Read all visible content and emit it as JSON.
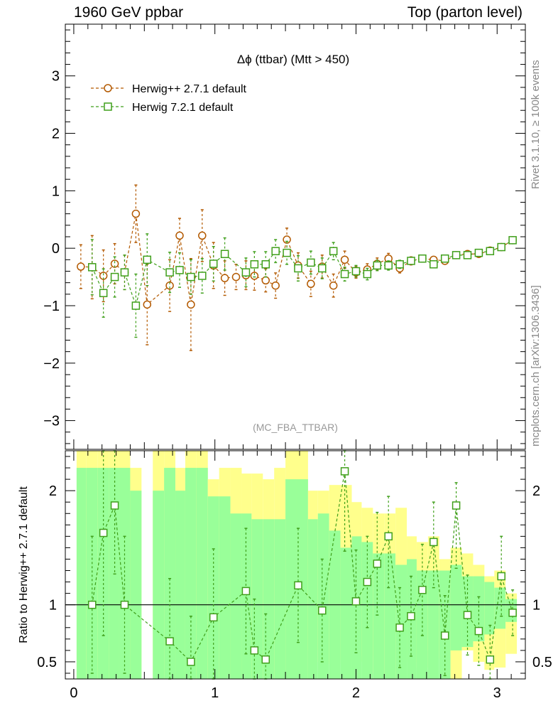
{
  "header": {
    "left": "1960 GeV ppbar",
    "right": "Top (parton level)"
  },
  "side_labels": {
    "top": "Rivet 3.1.10, ≥ 100k events",
    "bottom": "mcplots.cern.ch [arXiv:1306.3436]"
  },
  "colors": {
    "herwigpp": "#b35900",
    "herwig7": "#3f9f1a",
    "band_green": "#99ff99",
    "band_yellow": "#ffff8c"
  },
  "chart_data": [
    {
      "type": "line",
      "title": "Δϕ (ttbar) (Mtt > 450)",
      "watermark": "(MC_FBA_TTBAR)",
      "xlabel": "",
      "ylabel": "",
      "xlim": [
        -0.06,
        3.2
      ],
      "ylim": [
        -3.5,
        3.9
      ],
      "yticks": [
        -3,
        -2,
        -1,
        0,
        1,
        2,
        3
      ],
      "legend_position": "top-left",
      "series": [
        {
          "name": "Herwig++ 2.7.1 default",
          "marker": "circle",
          "x": [
            0.05,
            0.13,
            0.21,
            0.29,
            0.36,
            0.44,
            0.52,
            0.68,
            0.75,
            0.83,
            0.91,
            0.99,
            1.07,
            1.15,
            1.22,
            1.28,
            1.36,
            1.43,
            1.51,
            1.59,
            1.68,
            1.76,
            1.84,
            1.92,
            2.0,
            2.08,
            2.15,
            2.23,
            2.31,
            2.39,
            2.47,
            2.55,
            2.63,
            2.71,
            2.79,
            2.87,
            2.95,
            3.03,
            3.11
          ],
          "y": [
            -0.32,
            -0.33,
            -0.48,
            -0.27,
            -0.42,
            0.6,
            -0.98,
            -0.65,
            0.22,
            -0.98,
            0.22,
            -0.3,
            -0.52,
            -0.5,
            -0.47,
            -0.48,
            -0.56,
            -0.65,
            0.15,
            -0.3,
            -0.62,
            -0.32,
            -0.65,
            -0.2,
            -0.42,
            -0.37,
            -0.27,
            -0.18,
            -0.35,
            -0.22,
            -0.18,
            -0.2,
            -0.22,
            -0.12,
            -0.1,
            -0.1,
            -0.04,
            0.02,
            0.14
          ],
          "err": [
            0.38,
            0.55,
            0.45,
            0.35,
            0.3,
            0.5,
            0.7,
            0.45,
            0.3,
            0.8,
            0.45,
            0.4,
            0.3,
            0.22,
            0.25,
            0.25,
            0.2,
            0.22,
            0.2,
            0.22,
            0.22,
            0.2,
            0.2,
            0.15,
            0.1,
            0.1,
            0.1,
            0.09,
            0.08,
            0.07,
            0.06,
            0.05,
            0.05,
            0.05,
            0.04,
            0.04,
            0.04,
            0.04,
            0.04
          ]
        },
        {
          "name": "Herwig 7.2.1 default",
          "marker": "square",
          "x": [
            0.13,
            0.21,
            0.29,
            0.36,
            0.44,
            0.52,
            0.68,
            0.75,
            0.83,
            0.91,
            0.99,
            1.07,
            1.22,
            1.28,
            1.36,
            1.43,
            1.51,
            1.59,
            1.68,
            1.76,
            1.84,
            1.92,
            2.0,
            2.08,
            2.15,
            2.23,
            2.31,
            2.39,
            2.47,
            2.55,
            2.63,
            2.71,
            2.79,
            2.87,
            2.95,
            3.03,
            3.11
          ],
          "y": [
            -0.33,
            -0.78,
            -0.5,
            -0.42,
            -1.0,
            -0.2,
            -0.42,
            -0.38,
            -0.5,
            -0.48,
            -0.27,
            -0.1,
            -0.42,
            -0.28,
            -0.28,
            -0.05,
            -0.08,
            -0.35,
            -0.25,
            -0.35,
            -0.05,
            -0.45,
            -0.4,
            -0.45,
            -0.3,
            -0.3,
            -0.28,
            -0.22,
            -0.18,
            -0.28,
            -0.18,
            -0.12,
            -0.12,
            -0.08,
            -0.05,
            0.02,
            0.14
          ],
          "err": [
            0.48,
            0.42,
            0.35,
            0.3,
            0.55,
            0.45,
            0.35,
            0.3,
            0.3,
            0.3,
            0.3,
            0.28,
            0.25,
            0.22,
            0.22,
            0.2,
            0.2,
            0.22,
            0.2,
            0.18,
            0.15,
            0.12,
            0.1,
            0.1,
            0.09,
            0.08,
            0.07,
            0.06,
            0.06,
            0.05,
            0.05,
            0.04,
            0.04,
            0.04,
            0.04,
            0.04,
            0.04
          ]
        }
      ]
    },
    {
      "type": "line",
      "ylabel": "Ratio to Herwig++ 2.7.1 default",
      "xlim": [
        -0.06,
        3.2
      ],
      "ylim": [
        0.35,
        2.35
      ],
      "yticks": [
        0.5,
        1,
        2
      ],
      "ytick_labels": [
        "0.5",
        "1",
        "2"
      ],
      "xticks": [
        0,
        1,
        2,
        3
      ],
      "xtick_labels": [
        "0",
        "1",
        "2",
        "3"
      ],
      "reference_line": 1,
      "bands": {
        "edges": [
          0.02,
          0.09,
          0.17,
          0.25,
          0.32,
          0.4,
          0.48,
          0.56,
          0.64,
          0.72,
          0.79,
          0.87,
          0.95,
          1.03,
          1.11,
          1.19,
          1.26,
          1.34,
          1.42,
          1.5,
          1.58,
          1.66,
          1.73,
          1.81,
          1.89,
          1.97,
          2.04,
          2.12,
          2.2,
          2.28,
          2.36,
          2.43,
          2.51,
          2.59,
          2.67,
          2.75,
          2.83,
          2.91,
          2.98,
          3.06,
          3.14
        ],
        "yellow_low": [
          0.3,
          0.3,
          0.3,
          0.3,
          0.3,
          0.3,
          null,
          0.3,
          0.3,
          0.3,
          0.3,
          0.3,
          0.3,
          0.3,
          0.3,
          0.3,
          0.3,
          0.33,
          0.35,
          0.3,
          0.3,
          0.6,
          0.5,
          0.48,
          0.52,
          0.5,
          0.55,
          0.4,
          0.3,
          0.33,
          0.5,
          0.45,
          0.6,
          0.53,
          0.35,
          0.6,
          0.5,
          0.43,
          0.45,
          0.57
        ],
        "yellow_high": [
          2.4,
          2.4,
          2.4,
          2.4,
          2.4,
          2.2,
          null,
          2.4,
          2.4,
          2.2,
          2.4,
          2.4,
          2.1,
          2.2,
          2.2,
          2.15,
          2.15,
          2.1,
          2.2,
          2.4,
          2.4,
          2.0,
          2.0,
          2.05,
          2.05,
          1.9,
          1.85,
          1.8,
          1.8,
          1.85,
          1.6,
          1.55,
          1.6,
          1.4,
          1.5,
          1.45,
          1.35,
          1.25,
          1.3,
          1.1
        ],
        "green_low": [
          0.3,
          0.3,
          0.3,
          0.3,
          0.3,
          0.3,
          null,
          0.3,
          0.3,
          0.3,
          0.3,
          0.3,
          0.3,
          0.3,
          0.3,
          0.3,
          0.3,
          0.3,
          0.3,
          0.3,
          0.3,
          0.3,
          0.3,
          0.3,
          0.3,
          0.3,
          0.3,
          0.3,
          0.3,
          0.3,
          0.3,
          0.3,
          0.3,
          0.35,
          0.6,
          0.63,
          0.68,
          0.74,
          0.79,
          0.85
        ],
        "green_high": [
          2.2,
          2.2,
          2.2,
          2.2,
          2.2,
          2.0,
          null,
          2.0,
          2.2,
          2.0,
          2.2,
          2.2,
          1.95,
          1.95,
          1.8,
          1.8,
          1.75,
          1.75,
          1.75,
          2.1,
          2.1,
          1.75,
          1.8,
          1.65,
          1.5,
          1.6,
          1.55,
          1.45,
          1.45,
          1.35,
          1.4,
          1.3,
          1.3,
          1.3,
          1.35,
          1.25,
          1.25,
          1.2,
          1.15,
          1.05
        ]
      },
      "series": [
        {
          "name": "Herwig 7.2.1 default",
          "marker": "square",
          "x": [
            0.13,
            0.21,
            0.29,
            0.36,
            0.68,
            0.83,
            0.99,
            1.22,
            1.28,
            1.36,
            1.59,
            1.76,
            1.92,
            2.0,
            2.08,
            2.15,
            2.23,
            2.31,
            2.39,
            2.47,
            2.55,
            2.63,
            2.71,
            2.79,
            2.87,
            2.95,
            3.03,
            3.11
          ],
          "y": [
            1.0,
            1.63,
            1.87,
            1.0,
            0.68,
            0.5,
            0.89,
            1.12,
            0.6,
            0.52,
            1.17,
            0.95,
            2.17,
            1.03,
            1.2,
            1.36,
            1.6,
            0.8,
            0.9,
            1.13,
            1.55,
            0.73,
            1.87,
            0.91,
            0.77,
            0.52,
            1.25,
            0.93
          ],
          "err_low": [
            0.6,
            0.9,
            0.6,
            0.6,
            0.55,
            0.4,
            0.6,
            0.55,
            0.45,
            0.4,
            0.5,
            0.45,
            0.7,
            0.45,
            0.4,
            0.45,
            0.45,
            0.35,
            0.35,
            0.4,
            0.4,
            0.35,
            0.55,
            0.35,
            0.3,
            0.3,
            0.35,
            0.2
          ],
          "err_high": [
            0.6,
            0.9,
            0.6,
            0.6,
            0.55,
            0.4,
            0.6,
            0.55,
            0.45,
            0.4,
            0.5,
            0.45,
            0.2,
            0.45,
            0.4,
            0.45,
            0.35,
            0.35,
            0.35,
            0.4,
            0.35,
            0.35,
            0.2,
            0.35,
            0.3,
            0.3,
            0.35,
            0.2
          ]
        }
      ]
    }
  ]
}
